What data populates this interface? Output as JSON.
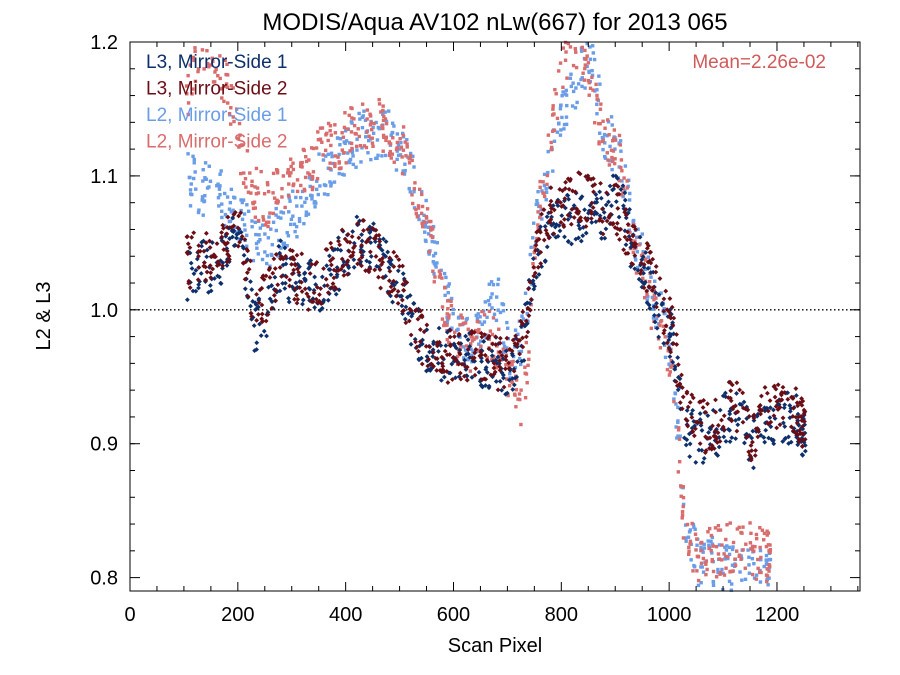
{
  "chart_data": {
    "type": "scatter",
    "title": "MODIS/Aqua AV102 nLw(667) for 2013 065",
    "xlabel": "Scan Pixel",
    "ylabel": "L2 & L3",
    "xlim": [
      0,
      1354
    ],
    "ylim": [
      0.79,
      1.2
    ],
    "xticks": [
      "0",
      "200",
      "400",
      "600",
      "800",
      "1000",
      "1200"
    ],
    "xtick_values": [
      0,
      200,
      400,
      600,
      800,
      1000,
      1200
    ],
    "yticks": [
      "0.8",
      "0.9",
      "1.0",
      "1.1",
      "1.2"
    ],
    "ytick_values": [
      0.8,
      0.9,
      1.0,
      1.1,
      1.2
    ],
    "reference_line": 1.0,
    "annotation": "Mean=2.26e-02",
    "annotation_color": "#d05a5a",
    "legend_position": "top-left",
    "series": [
      {
        "name": "L3, Mirror-Side 1",
        "color": "#0d2f6b",
        "marker": "diamond",
        "x": [
          105,
          130,
          155,
          180,
          205,
          230,
          255,
          280,
          305,
          330,
          355,
          380,
          405,
          430,
          455,
          480,
          505,
          530,
          555,
          580,
          605,
          630,
          655,
          680,
          705,
          730,
          755,
          780,
          805,
          830,
          855,
          880,
          905,
          930,
          955,
          980,
          1005,
          1030,
          1055,
          1080,
          1105,
          1130,
          1155,
          1180,
          1205,
          1230,
          1245
        ],
        "y": [
          1.025,
          1.035,
          1.03,
          1.045,
          1.055,
          0.985,
          1.0,
          1.035,
          1.02,
          1.02,
          1.015,
          1.03,
          1.045,
          1.055,
          1.045,
          1.03,
          1.01,
          0.985,
          0.97,
          0.965,
          0.965,
          0.965,
          0.96,
          0.96,
          0.955,
          0.98,
          1.04,
          1.065,
          1.065,
          1.07,
          1.07,
          1.07,
          1.09,
          1.05,
          1.03,
          1.0,
          0.98,
          0.905,
          0.905,
          0.905,
          0.92,
          0.92,
          0.9,
          0.915,
          0.92,
          0.92,
          0.91
        ]
      },
      {
        "name": "L3, Mirror-Side 2",
        "color": "#6b0d15",
        "marker": "diamond",
        "x": [
          105,
          130,
          155,
          180,
          205,
          230,
          255,
          280,
          305,
          330,
          355,
          380,
          405,
          430,
          455,
          480,
          505,
          530,
          555,
          580,
          605,
          630,
          655,
          680,
          705,
          730,
          755,
          780,
          805,
          830,
          855,
          880,
          905,
          930,
          955,
          980,
          1005,
          1030,
          1055,
          1080,
          1105,
          1130,
          1155,
          1180,
          1205,
          1230,
          1245
        ],
        "y": [
          1.035,
          1.04,
          1.04,
          1.05,
          1.055,
          1.005,
          1.01,
          1.035,
          1.025,
          1.02,
          1.02,
          1.035,
          1.045,
          1.05,
          1.04,
          1.03,
          1.015,
          0.99,
          0.965,
          0.965,
          0.965,
          0.965,
          0.965,
          0.96,
          0.96,
          0.985,
          1.04,
          1.075,
          1.08,
          1.085,
          1.08,
          1.075,
          1.075,
          1.05,
          1.035,
          1.01,
          0.985,
          0.92,
          0.915,
          0.91,
          0.93,
          0.925,
          0.905,
          0.925,
          0.93,
          0.925,
          0.915
        ]
      },
      {
        "name": "L2, Mirror-Side 1",
        "color": "#6a9de8",
        "marker": "square",
        "x": [
          105,
          130,
          155,
          180,
          205,
          230,
          255,
          280,
          305,
          330,
          355,
          380,
          405,
          430,
          455,
          480,
          505,
          530,
          555,
          580,
          605,
          630,
          655,
          680,
          705,
          730,
          755,
          780,
          805,
          830,
          855,
          880,
          905,
          930,
          955,
          980,
          1005,
          1030,
          1055,
          1080,
          1105,
          1130,
          1155,
          1180
        ],
        "y": [
          1.1,
          1.09,
          1.09,
          1.08,
          1.07,
          1.05,
          1.05,
          1.06,
          1.07,
          1.09,
          1.1,
          1.11,
          1.12,
          1.13,
          1.13,
          1.13,
          1.12,
          1.09,
          1.06,
          1.02,
          0.99,
          0.97,
          0.99,
          1.01,
          0.96,
          0.98,
          1.07,
          1.11,
          1.15,
          1.17,
          1.19,
          1.13,
          1.12,
          1.07,
          1.03,
          1.0,
          0.97,
          0.84,
          0.81,
          0.815,
          0.805,
          0.805,
          0.8,
          0.805
        ]
      },
      {
        "name": "L2, Mirror-Side 2",
        "color": "#d96c6c",
        "marker": "square",
        "x": [
          105,
          130,
          155,
          180,
          205,
          230,
          255,
          280,
          305,
          330,
          355,
          380,
          405,
          430,
          455,
          480,
          505,
          530,
          555,
          580,
          605,
          630,
          655,
          680,
          705,
          730,
          755,
          780,
          805,
          830,
          855,
          880,
          905,
          930,
          955,
          980,
          1005,
          1030,
          1055,
          1080,
          1105,
          1130,
          1155,
          1180
        ],
        "y": [
          1.16,
          1.2,
          1.19,
          1.17,
          1.12,
          1.09,
          1.08,
          1.09,
          1.1,
          1.1,
          1.12,
          1.12,
          1.13,
          1.14,
          1.14,
          1.13,
          1.12,
          1.09,
          1.06,
          1.0,
          0.98,
          0.97,
          0.99,
          0.97,
          0.95,
          0.93,
          1.06,
          1.13,
          1.19,
          1.2,
          1.16,
          1.13,
          1.12,
          1.06,
          1.02,
          0.99,
          0.96,
          0.83,
          0.815,
          0.82,
          0.82,
          0.825,
          0.82,
          0.815
        ]
      }
    ]
  }
}
